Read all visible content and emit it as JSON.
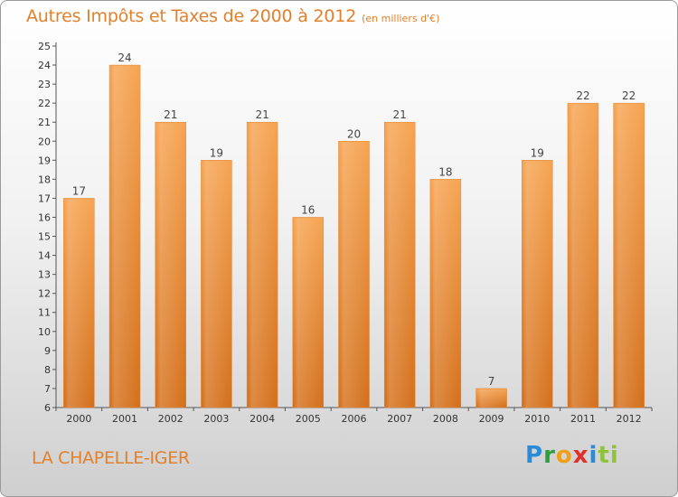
{
  "chart_data": {
    "type": "bar",
    "title": "Autres Impôts et Taxes de 2000 à 2012",
    "subtitle": "(en milliers d'€)",
    "categories": [
      "2000",
      "2001",
      "2002",
      "2003",
      "2004",
      "2005",
      "2006",
      "2007",
      "2008",
      "2009",
      "2010",
      "2011",
      "2012"
    ],
    "values": [
      17,
      24,
      21,
      19,
      21,
      16,
      20,
      21,
      18,
      7,
      19,
      22,
      22
    ],
    "ylim": [
      6,
      25
    ],
    "yticks": [
      6,
      7,
      8,
      9,
      10,
      11,
      12,
      13,
      14,
      15,
      16,
      17,
      18,
      19,
      20,
      21,
      22,
      23,
      24,
      25
    ],
    "grid": false,
    "bar_color": "#f0963e",
    "bar_color_dark": "#d8731e"
  },
  "commune": "LA CHAPELLE-IGER",
  "logo": {
    "text": "Proxiti",
    "parts": [
      "P",
      "r",
      "o",
      "x",
      "i",
      "ti"
    ]
  }
}
